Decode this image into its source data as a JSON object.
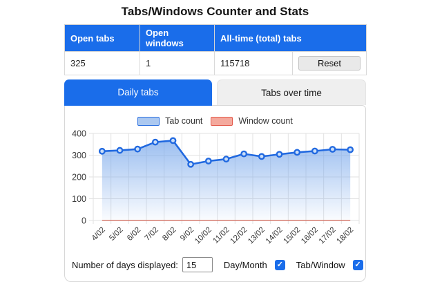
{
  "title": "Tabs/Windows Counter and Stats",
  "stats_table": {
    "headers": [
      "Open tabs",
      "Open windows",
      "All-time (total) tabs"
    ],
    "open_tabs": "325",
    "open_windows": "1",
    "all_time_tabs": "115718",
    "reset_label": "Reset"
  },
  "tabs": [
    {
      "label": "Daily tabs",
      "active": true
    },
    {
      "label": "Tabs over time",
      "active": false
    }
  ],
  "chart_data": {
    "type": "area",
    "title": "",
    "categories": [
      "4/02",
      "5/02",
      "6/02",
      "7/02",
      "8/02",
      "9/02",
      "10/02",
      "11/02",
      "12/02",
      "13/02",
      "14/02",
      "15/02",
      "16/02",
      "17/02",
      "18/02"
    ],
    "series": [
      {
        "name": "Tab count",
        "values": [
          318,
          322,
          328,
          360,
          367,
          258,
          273,
          282,
          306,
          294,
          304,
          313,
          319,
          327,
          325
        ],
        "color": "#2169e0",
        "swatch_fill": "#abc8f0",
        "swatch_border": "#2b6fe0",
        "area_gradient_top": "rgba(121,168,235,0.8)",
        "area_gradient_bottom": "rgba(121,168,235,0.03)"
      },
      {
        "name": "Window count",
        "values": [
          1,
          1,
          1,
          1,
          1,
          1,
          1,
          1,
          1,
          1,
          1,
          1,
          1,
          1,
          1
        ],
        "color": "#cf5a4b",
        "swatch_fill": "#f4a99d",
        "swatch_border": "#e3594a"
      }
    ],
    "ylim": [
      0,
      400
    ],
    "yticks": [
      0,
      100,
      200,
      300,
      400
    ],
    "grid": true,
    "legend_position": "top",
    "x_tick_rotation": -45,
    "xlabel": "",
    "ylabel": ""
  },
  "controls": {
    "days_label": "Number of days displayed:",
    "days_value": "15",
    "day_month_label": "Day/Month",
    "day_month_checked": true,
    "tab_window_label": "Tab/Window",
    "tab_window_checked": true
  },
  "icons": {
    "checkmark": "✓"
  },
  "colors": {
    "accent": "#1a6dea",
    "grid_line": "#e2e2e2",
    "tick_text": "#3a3a3a",
    "point_fill": "#cadef8"
  }
}
